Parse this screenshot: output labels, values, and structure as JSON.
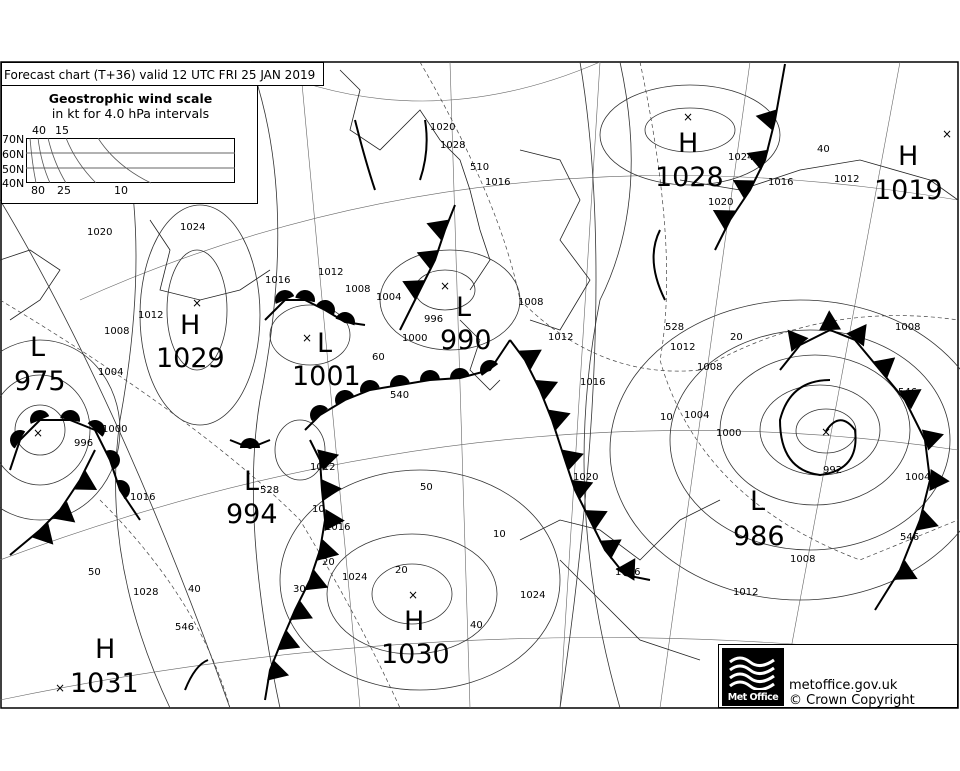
{
  "header": {
    "title": "Forecast chart (T+36) valid 12 UTC FRI 25  JAN 2019"
  },
  "wind_scale": {
    "title": "Geostrophic wind scale",
    "subtitle": "in kt for 4.0 hPa intervals",
    "latitudes": [
      "70N",
      "60N",
      "50N",
      "40N"
    ],
    "top_labels": [
      "40",
      "15"
    ],
    "bottom_labels": [
      "80",
      "25",
      "10"
    ]
  },
  "pressure_systems": [
    {
      "type": "H",
      "value": "1028"
    },
    {
      "type": "H",
      "value": "1019"
    },
    {
      "type": "L",
      "value": "975"
    },
    {
      "type": "H",
      "value": "1029"
    },
    {
      "type": "L",
      "value": "1001"
    },
    {
      "type": "L",
      "value": "990"
    },
    {
      "type": "L",
      "value": "994"
    },
    {
      "type": "L",
      "value": "986"
    },
    {
      "type": "H",
      "value": "1030"
    },
    {
      "type": "H",
      "value": "1031"
    }
  ],
  "isobar_labels": [
    "1020",
    "1016",
    "1012",
    "1008",
    "1004",
    "1000",
    "996",
    "992",
    "1024",
    "1028",
    "1016",
    "1012",
    "1008",
    "1004",
    "1000",
    "996",
    "1016",
    "1012",
    "1008",
    "1024",
    "1020",
    "1016",
    "1012",
    "1008",
    "1004",
    "1028",
    "1024",
    "1020",
    "1012",
    "1016",
    "1008",
    "1004",
    "1000",
    "1012",
    "1008",
    "1016",
    "1024",
    "1020",
    "1016",
    "1012"
  ],
  "thickness_labels": [
    "510",
    "528",
    "540",
    "546",
    "546",
    "528",
    "546",
    "50",
    "40",
    "20",
    "10",
    "60",
    "50",
    "40",
    "30",
    "20",
    "10",
    "40",
    "20",
    "10"
  ],
  "footer": {
    "logo": "Met Office",
    "site": "metoffice.gov.uk",
    "copyright": "© Crown Copyright"
  },
  "colors": {
    "ink": "#000000",
    "background": "#ffffff"
  }
}
